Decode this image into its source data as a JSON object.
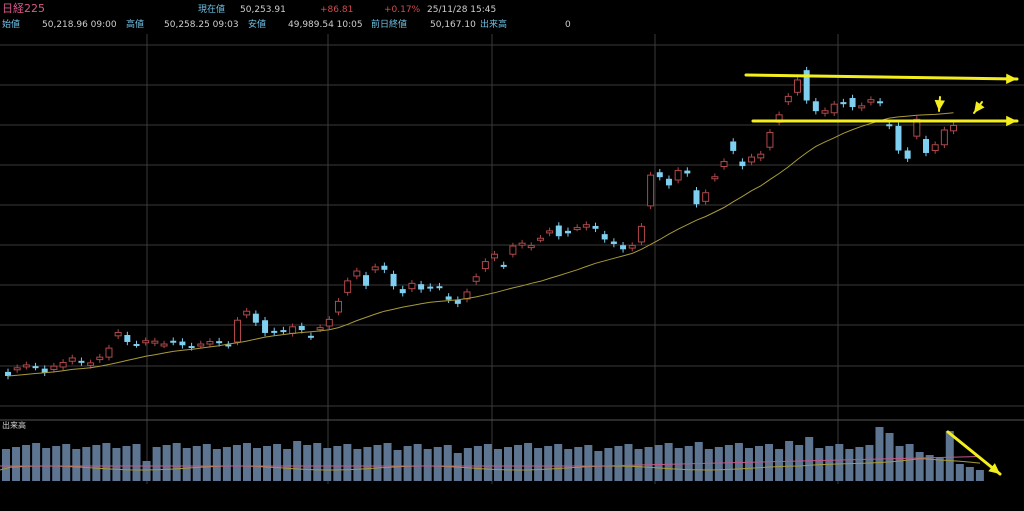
{
  "header": {
    "title": "日経225",
    "current_label": "現在値",
    "current_value": "50,253.91",
    "change": "+86.81",
    "change_pct": "+0.17%",
    "datetime": "25/11/28 15:45",
    "open_label": "始値",
    "open_value": "50,218.96 09:00",
    "high_label": "高値",
    "high_value": "50,258.25 09:03",
    "low_label": "安値",
    "low_value": "49,989.54 10:05",
    "prev_close_label": "前日終値",
    "prev_close_value": "50,167.10",
    "volume_label": "出来高",
    "volume_value": "0"
  },
  "volume_panel": {
    "label": "出来高"
  },
  "colors": {
    "background": "#000000",
    "grid": "#3a3a3a",
    "up_candle": "#b0484a",
    "down_candle": "#7ecff0",
    "moving_average": "#a89a3a",
    "volume_bar": "#5d7591",
    "volume_ma_1": "#a89a3a",
    "volume_ma_2": "#c05a8a",
    "annotation": "#f4ee1c",
    "change_text": "#d64b4b"
  },
  "chart_data": {
    "type": "candlestick",
    "symbol": "日経225",
    "candles": [
      {
        "o": 1.0,
        "c": 0.0
      },
      {
        "o": 1.6,
        "c": 2.0
      },
      {
        "o": 2.4,
        "c": 2.7
      },
      {
        "o": 2.4,
        "c": 2.2
      },
      {
        "o": 1.8,
        "c": 0.8
      },
      {
        "o": 1.6,
        "c": 2.4
      },
      {
        "o": 2.2,
        "c": 3.3
      },
      {
        "o": 3.6,
        "c": 4.4
      },
      {
        "o": 3.7,
        "c": 3.3
      },
      {
        "o": 2.6,
        "c": 3.2
      },
      {
        "o": 4.0,
        "c": 4.6
      },
      {
        "o": 4.6,
        "c": 6.8
      },
      {
        "o": 9.8,
        "c": 10.6
      },
      {
        "o": 10.0,
        "c": 8.3
      },
      {
        "o": 7.8,
        "c": 7.7
      },
      {
        "o": 8.2,
        "c": 8.6
      },
      {
        "o": 8.1,
        "c": 8.5
      },
      {
        "o": 7.6,
        "c": 7.8
      },
      {
        "o": 8.6,
        "c": 8.3
      },
      {
        "o": 8.4,
        "c": 7.5
      },
      {
        "o": 7.3,
        "c": 7.0
      },
      {
        "o": 7.5,
        "c": 7.8
      },
      {
        "o": 7.8,
        "c": 8.4
      },
      {
        "o": 8.5,
        "c": 8.0
      },
      {
        "o": 7.7,
        "c": 7.5
      },
      {
        "o": 8.3,
        "c": 13.6
      },
      {
        "o": 14.9,
        "c": 15.8
      },
      {
        "o": 15.2,
        "c": 13.0
      },
      {
        "o": 13.6,
        "c": 10.5
      },
      {
        "o": 11.0,
        "c": 10.7
      },
      {
        "o": 11.2,
        "c": 11.0
      },
      {
        "o": 10.4,
        "c": 12.0
      },
      {
        "o": 12.2,
        "c": 11.2
      },
      {
        "o": 9.8,
        "c": 9.6
      },
      {
        "o": 11.5,
        "c": 11.8
      },
      {
        "o": 12.2,
        "c": 13.8
      },
      {
        "o": 15.6,
        "c": 18.2
      },
      {
        "o": 20.4,
        "c": 23.2
      },
      {
        "o": 24.4,
        "c": 25.6
      },
      {
        "o": 24.6,
        "c": 22.0
      },
      {
        "o": 25.9,
        "c": 26.6
      },
      {
        "o": 26.9,
        "c": 25.9
      },
      {
        "o": 24.9,
        "c": 21.9
      },
      {
        "o": 21.2,
        "c": 20.2
      },
      {
        "o": 21.3,
        "c": 22.6
      },
      {
        "o": 22.4,
        "c": 21.1
      },
      {
        "o": 21.8,
        "c": 21.4
      },
      {
        "o": 21.9,
        "c": 21.7
      },
      {
        "o": 19.4,
        "c": 18.6
      },
      {
        "o": 18.6,
        "c": 17.6
      },
      {
        "o": 18.8,
        "c": 20.5
      },
      {
        "o": 23.1,
        "c": 24.2
      },
      {
        "o": 26.2,
        "c": 27.9
      },
      {
        "o": 28.8,
        "c": 29.7
      },
      {
        "o": 27.1,
        "c": 26.9
      },
      {
        "o": 29.7,
        "c": 31.7
      },
      {
        "o": 31.9,
        "c": 32.4
      },
      {
        "o": 31.4,
        "c": 31.8
      },
      {
        "o": 33.4,
        "c": 33.6
      },
      {
        "o": 34.9,
        "c": 35.4
      },
      {
        "o": 36.7,
        "c": 34.1
      },
      {
        "o": 35.4,
        "c": 34.8
      },
      {
        "o": 36.1,
        "c": 36.2
      },
      {
        "o": 36.3,
        "c": 36.9
      },
      {
        "o": 36.6,
        "c": 35.9
      },
      {
        "o": 34.6,
        "c": 33.3
      },
      {
        "o": 32.8,
        "c": 32.2
      },
      {
        "o": 31.9,
        "c": 30.9
      },
      {
        "o": 31.2,
        "c": 31.8
      },
      {
        "o": 32.7,
        "c": 36.5
      },
      {
        "o": 41.5,
        "c": 49.0
      },
      {
        "o": 49.7,
        "c": 48.5
      },
      {
        "o": 48.1,
        "c": 46.5
      },
      {
        "o": 47.8,
        "c": 50.1
      },
      {
        "o": 50.1,
        "c": 49.4
      },
      {
        "o": 45.3,
        "c": 41.9
      },
      {
        "o": 42.6,
        "c": 44.7
      },
      {
        "o": 48.2,
        "c": 48.6
      },
      {
        "o": 51.1,
        "c": 52.3
      },
      {
        "o": 57.2,
        "c": 54.9
      },
      {
        "o": 52.3,
        "c": 51.2
      },
      {
        "o": 52.2,
        "c": 53.4
      },
      {
        "o": 53.2,
        "c": 54.1
      },
      {
        "o": 55.8,
        "c": 59.4
      },
      {
        "o": 61.9,
        "c": 63.7
      },
      {
        "o": 66.9,
        "c": 68.2
      },
      {
        "o": 69.2,
        "c": 72.2
      },
      {
        "o": 74.6,
        "c": 67.2
      },
      {
        "o": 67.0,
        "c": 64.6
      },
      {
        "o": 64.1,
        "c": 64.7
      },
      {
        "o": 64.2,
        "c": 66.3
      },
      {
        "o": 66.8,
        "c": 66.3
      },
      {
        "o": 67.8,
        "c": 65.6
      },
      {
        "o": 65.4,
        "c": 65.9
      },
      {
        "o": 66.8,
        "c": 67.4
      },
      {
        "o": 67.0,
        "c": 66.6
      },
      {
        "o": 61.4,
        "c": 61.0
      },
      {
        "o": 61.0,
        "c": 55.0
      },
      {
        "o": 55.0,
        "c": 53.0
      },
      {
        "o": 58.5,
        "c": 62.6
      },
      {
        "o": 57.8,
        "c": 54.4
      },
      {
        "o": 55.0,
        "c": 56.4
      },
      {
        "o": 56.4,
        "c": 60.0
      },
      {
        "o": 59.8,
        "c": 61.1
      }
    ],
    "moving_average": [
      0.0,
      0.2,
      0.4,
      0.6,
      0.8,
      1.0,
      1.3,
      1.6,
      1.8,
      2.0,
      2.4,
      2.8,
      3.3,
      3.8,
      4.3,
      4.8,
      5.2,
      5.6,
      6.0,
      6.3,
      6.5,
      6.8,
      7.1,
      7.4,
      7.8,
      8.1,
      8.5,
      9.0,
      9.5,
      9.8,
      10.1,
      10.4,
      10.6,
      10.8,
      11.0,
      11.3,
      11.8,
      12.6,
      13.5,
      14.3,
      15.1,
      15.8,
      16.3,
      16.8,
      17.2,
      17.6,
      18.0,
      18.2,
      18.4,
      18.6,
      18.9,
      19.3,
      19.8,
      20.3,
      20.9,
      21.5,
      22.0,
      22.6,
      23.1,
      23.8,
      24.5,
      25.2,
      25.9,
      26.7,
      27.5,
      28.1,
      28.7,
      29.3,
      29.9,
      30.9,
      32.1,
      33.3,
      34.6,
      35.8,
      36.9,
      38.0,
      38.9,
      40.0,
      41.1,
      42.5,
      43.8,
      45.2,
      46.4,
      47.9,
      49.4,
      51.0,
      52.8,
      54.5,
      56.0,
      57.1,
      58.1,
      59.2,
      60.1,
      60.9,
      61.6,
      62.3,
      62.9,
      63.2,
      63.4,
      63.6,
      63.7,
      63.8,
      64.0,
      64.2
    ]
  }
}
